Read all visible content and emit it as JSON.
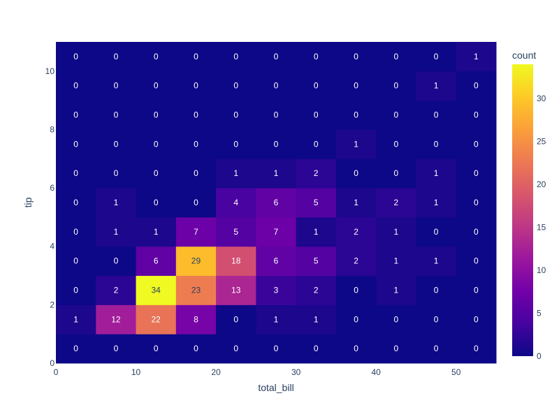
{
  "chart_data": {
    "type": "heatmap",
    "xlabel": "total_bill",
    "ylabel": "tip",
    "colorbar_title": "count",
    "x_ticks": [
      0,
      10,
      20,
      30,
      40,
      50
    ],
    "y_ticks": [
      0,
      2,
      4,
      6,
      8,
      10
    ],
    "x_range": [
      0,
      55
    ],
    "y_range": [
      0,
      11
    ],
    "x_bins": [
      2.5,
      7.5,
      12.5,
      17.5,
      22.5,
      27.5,
      32.5,
      37.5,
      42.5,
      47.5,
      52.5
    ],
    "y_bins": [
      0.5,
      1.5,
      2.5,
      3.5,
      4.5,
      5.5,
      6.5,
      7.5,
      8.5,
      9.5,
      10.5
    ],
    "z": [
      [
        0,
        0,
        0,
        0,
        0,
        0,
        0,
        0,
        0,
        0,
        0
      ],
      [
        1,
        12,
        22,
        8,
        0,
        1,
        1,
        0,
        0,
        0,
        0
      ],
      [
        0,
        2,
        34,
        23,
        13,
        3,
        2,
        0,
        1,
        0,
        0
      ],
      [
        0,
        0,
        6,
        29,
        18,
        6,
        5,
        2,
        1,
        1,
        0
      ],
      [
        0,
        1,
        1,
        7,
        5,
        7,
        1,
        2,
        1,
        0,
        0
      ],
      [
        0,
        1,
        0,
        0,
        4,
        6,
        5,
        1,
        2,
        1,
        0
      ],
      [
        0,
        0,
        0,
        0,
        1,
        1,
        2,
        0,
        0,
        1,
        0
      ],
      [
        0,
        0,
        0,
        0,
        0,
        0,
        0,
        1,
        0,
        0,
        0
      ],
      [
        0,
        0,
        0,
        0,
        0,
        0,
        0,
        0,
        0,
        0,
        0
      ],
      [
        0,
        0,
        0,
        0,
        0,
        0,
        0,
        0,
        0,
        1,
        0
      ],
      [
        0,
        0,
        0,
        0,
        0,
        0,
        0,
        0,
        0,
        0,
        1
      ]
    ],
    "zmin": 0,
    "zmax": 34,
    "colorbar_ticks": [
      0,
      5,
      10,
      15,
      20,
      25,
      30
    ],
    "colorscale": [
      "#0d0887",
      "#46039f",
      "#7201a8",
      "#9c179e",
      "#bd3786",
      "#d8576b",
      "#ed7953",
      "#fb9f3a",
      "#fdca26",
      "#f0f921"
    ]
  }
}
